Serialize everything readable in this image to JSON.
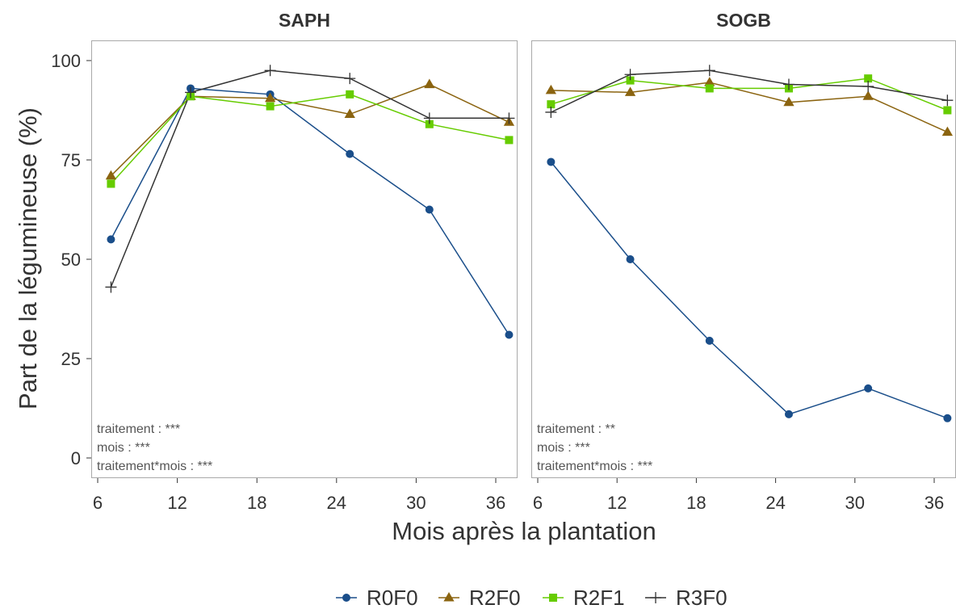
{
  "figure": {
    "ylabel": "Part de la légumineuse (%)",
    "xlabel": "Mois après la plantation"
  },
  "legend": {
    "placement": "bottom",
    "items": [
      {
        "label": "R0F0",
        "color": "#1a4e8a",
        "marker": "circle"
      },
      {
        "label": "R2F0",
        "color": "#8b6410",
        "marker": "triangle"
      },
      {
        "label": "R2F1",
        "color": "#66cc00",
        "marker": "square"
      },
      {
        "label": "R3F0",
        "color": "#333333",
        "marker": "plus"
      }
    ]
  },
  "chart_data": [
    {
      "type": "line",
      "title": "SAPH",
      "xlabel": "Mois après la plantation",
      "ylabel": "Part de la légumineuse (%)",
      "xlim": [
        5,
        38
      ],
      "ylim": [
        -5,
        105
      ],
      "xticks": [
        6,
        12,
        18,
        24,
        30,
        36
      ],
      "yticks": [
        0,
        25,
        50,
        75,
        100
      ],
      "grid": false,
      "annotations": [
        "traitement : ***",
        "mois : ***",
        "traitement*mois : ***"
      ],
      "series": [
        {
          "name": "R0F0",
          "x": [
            7,
            13,
            19,
            25,
            31,
            37
          ],
          "values": [
            55,
            93,
            91.5,
            76.5,
            62.5,
            31
          ]
        },
        {
          "name": "R2F0",
          "x": [
            7,
            13,
            19,
            25,
            31,
            37
          ],
          "values": [
            71,
            91,
            90.5,
            86.5,
            94,
            84.5
          ]
        },
        {
          "name": "R2F1",
          "x": [
            7,
            13,
            19,
            25,
            31,
            37
          ],
          "values": [
            69,
            91,
            88.5,
            91.5,
            84,
            80
          ]
        },
        {
          "name": "R3F0",
          "x": [
            7,
            13,
            19,
            25,
            31,
            37
          ],
          "values": [
            43,
            92,
            97.5,
            95.5,
            85.5,
            85.5
          ]
        }
      ]
    },
    {
      "type": "line",
      "title": "SOGB",
      "xlabel": "Mois après la plantation",
      "ylabel": "Part de la légumineuse (%)",
      "xlim": [
        5,
        38
      ],
      "ylim": [
        -5,
        105
      ],
      "xticks": [
        6,
        12,
        18,
        24,
        30,
        36
      ],
      "yticks": [
        0,
        25,
        50,
        75,
        100
      ],
      "grid": false,
      "annotations": [
        "traitement : **",
        "mois : ***",
        "traitement*mois : ***"
      ],
      "series": [
        {
          "name": "R0F0",
          "x": [
            7,
            13,
            19,
            25,
            31,
            37
          ],
          "values": [
            74.5,
            50,
            29.5,
            11,
            17.5,
            10
          ]
        },
        {
          "name": "R2F0",
          "x": [
            7,
            13,
            19,
            25,
            31,
            37
          ],
          "values": [
            92.5,
            92,
            94.5,
            89.5,
            91,
            82
          ]
        },
        {
          "name": "R2F1",
          "x": [
            7,
            13,
            19,
            25,
            31,
            37
          ],
          "values": [
            89,
            95,
            93,
            93,
            95.5,
            87.5
          ]
        },
        {
          "name": "R3F0",
          "x": [
            7,
            13,
            19,
            25,
            31,
            37
          ],
          "values": [
            87,
            96.5,
            97.5,
            94,
            93.5,
            90
          ]
        }
      ]
    }
  ]
}
